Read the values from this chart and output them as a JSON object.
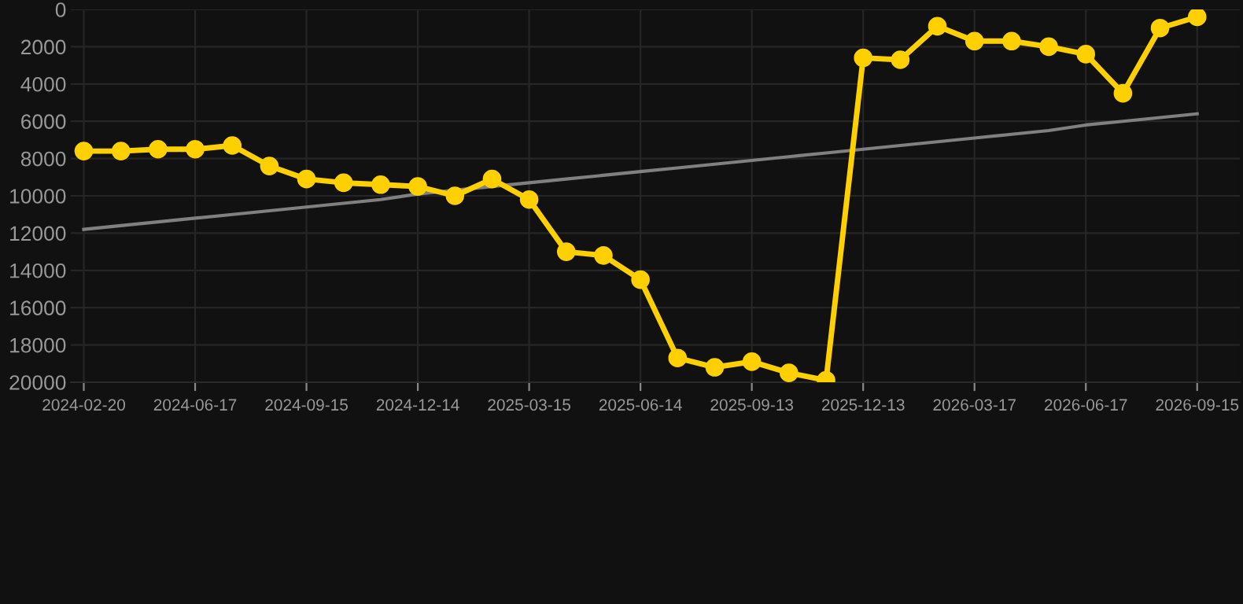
{
  "chart_data": {
    "type": "line",
    "categories": [
      "2024-02-20",
      null,
      null,
      "2024-06-17",
      null,
      null,
      "2024-09-15",
      null,
      null,
      "2024-12-14",
      null,
      null,
      "2025-03-15",
      null,
      null,
      "2025-06-14",
      null,
      null,
      "2025-09-13",
      null,
      null,
      "2025-12-13",
      null,
      null,
      "2026-03-17",
      null,
      null,
      "2026-06-17",
      null,
      null,
      "2026-09-15"
    ],
    "series": [
      {
        "color": "#ffd000",
        "marker": "circle",
        "values": [
          7600,
          7600,
          7500,
          7500,
          7300,
          8400,
          9100,
          9300,
          9400,
          9500,
          10000,
          9100,
          10200,
          13000,
          13200,
          14500,
          18700,
          19200,
          18900,
          19500,
          19900,
          2600,
          2700,
          900,
          1700,
          1700,
          2000,
          2400,
          4500,
          1000,
          400
        ]
      },
      {
        "type": "line",
        "color": "#808080",
        "marker": "none",
        "values": [
          11800,
          11600,
          11400,
          11200,
          11000,
          10800,
          10600,
          10400,
          10200,
          9900,
          9700,
          9500,
          9300,
          9100,
          8900,
          8700,
          8500,
          8300,
          8100,
          7900,
          7700,
          7500,
          7300,
          7100,
          6900,
          6700,
          6500,
          6200,
          6000,
          5800,
          5600
        ]
      }
    ],
    "ylim": [
      20000,
      0
    ],
    "yticks": [
      0,
      2000,
      4000,
      6000,
      8000,
      10000,
      12000,
      14000,
      16000,
      18000,
      20000
    ],
    "grid": true,
    "line_style": "solid"
  }
}
